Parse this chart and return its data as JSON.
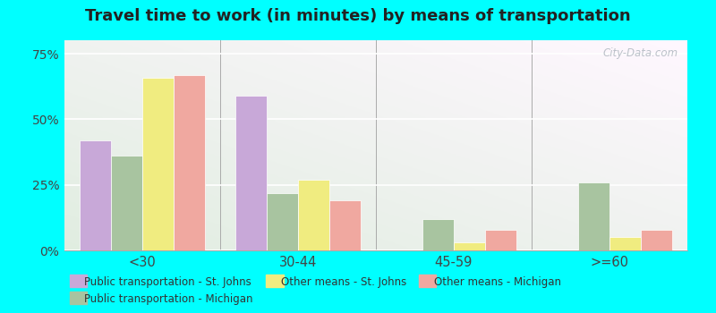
{
  "title": "Travel time to work (in minutes) by means of transportation",
  "categories": [
    "<30",
    "30-44",
    "45-59",
    ">=60"
  ],
  "series_order": [
    "Public transportation - St. Johns",
    "Public transportation - Michigan",
    "Other means - St. Johns",
    "Other means - Michigan"
  ],
  "series": {
    "Public transportation - St. Johns": [
      42,
      59,
      0,
      0
    ],
    "Public transportation - Michigan": [
      36,
      22,
      12,
      26
    ],
    "Other means - St. Johns": [
      66,
      27,
      3,
      5
    ],
    "Other means - Michigan": [
      67,
      19,
      8,
      8
    ]
  },
  "colors": {
    "Public transportation - St. Johns": "#c8a8d8",
    "Public transportation - Michigan": "#a8c4a0",
    "Other means - St. Johns": "#f0ec80",
    "Other means - Michigan": "#f0a8a0"
  },
  "legend_order": [
    "Public transportation - St. Johns",
    "Public transportation - Michigan",
    "Other means - St. Johns",
    "Other means - Michigan"
  ],
  "ylim": [
    0,
    80
  ],
  "yticks": [
    0,
    25,
    50,
    75
  ],
  "ytick_labels": [
    "0%",
    "25%",
    "50%",
    "75%"
  ],
  "outer_bg": "#00ffff",
  "watermark": "City-Data.com",
  "bar_width": 0.2,
  "title_fontsize": 13
}
